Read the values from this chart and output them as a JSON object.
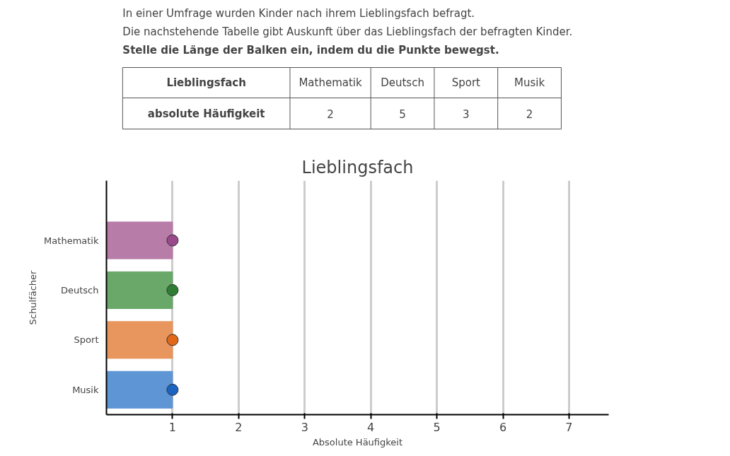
{
  "chart_data": [
    {
      "type": "other",
      "annotations": [
        "In einer Umfrage wurden Kinder nach ihrem Lieblingsfach befragt.",
        "Die nachstehende Tabelle gibt Auskunft über das Lieblingsfach der befragten Kinder.",
        "Stelle die Länge der Balken ein, indem du die Punkte bewegst.",
        "Lieblingsfach",
        "absolute Häufigkeit"
      ],
      "categories": [
        "Mathematik",
        "Deutsch",
        "Sport",
        "Musik"
      ],
      "values": [
        2,
        5,
        3,
        2
      ],
      "data_labels": true
    },
    {
      "type": "bar",
      "orientation": "horizontal",
      "title": "Lieblingsfach",
      "xlabel": "Absolute Häufigkeit",
      "ylabel": "Schulfächer",
      "categories": [
        "Mathematik",
        "Deutsch",
        "Sport",
        "Musik"
      ],
      "series": [
        {
          "type": "bar",
          "colors": [
            "#b87ca8",
            "#6aa86a",
            "#e8955e",
            "#5e95d4"
          ],
          "values": [
            1,
            1,
            1,
            1
          ]
        },
        {
          "type": "scatter",
          "colors": [
            "#9a4a8c",
            "#2e7d32",
            "#e06818",
            "#1a63c0"
          ],
          "values": [
            1,
            1,
            1,
            1
          ],
          "x": [
            "Mathematik",
            "Deutsch",
            "Sport",
            "Musik"
          ]
        }
      ],
      "xlim": [
        0,
        7.6
      ],
      "xticks": [
        1,
        2,
        3,
        4,
        5,
        6,
        7
      ],
      "grid": "x",
      "marker": "circle"
    }
  ]
}
